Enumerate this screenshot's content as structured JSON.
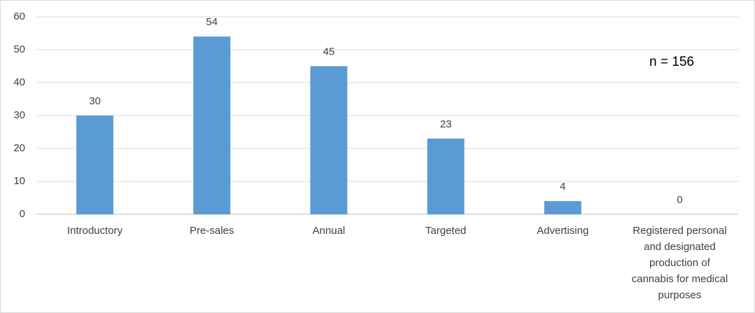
{
  "chart_data": {
    "type": "bar",
    "categories": [
      "Introductory",
      "Pre-sales",
      "Annual",
      "Targeted",
      "Advertising",
      "Registered personal and designated production of cannabis for medical purposes"
    ],
    "values": [
      30,
      54,
      45,
      23,
      4,
      0
    ],
    "color": "#5b9bd5",
    "ylim": [
      0,
      60
    ],
    "yticks": [
      0,
      10,
      20,
      30,
      40,
      50,
      60
    ],
    "grid": true,
    "annotation": "n = 156"
  }
}
